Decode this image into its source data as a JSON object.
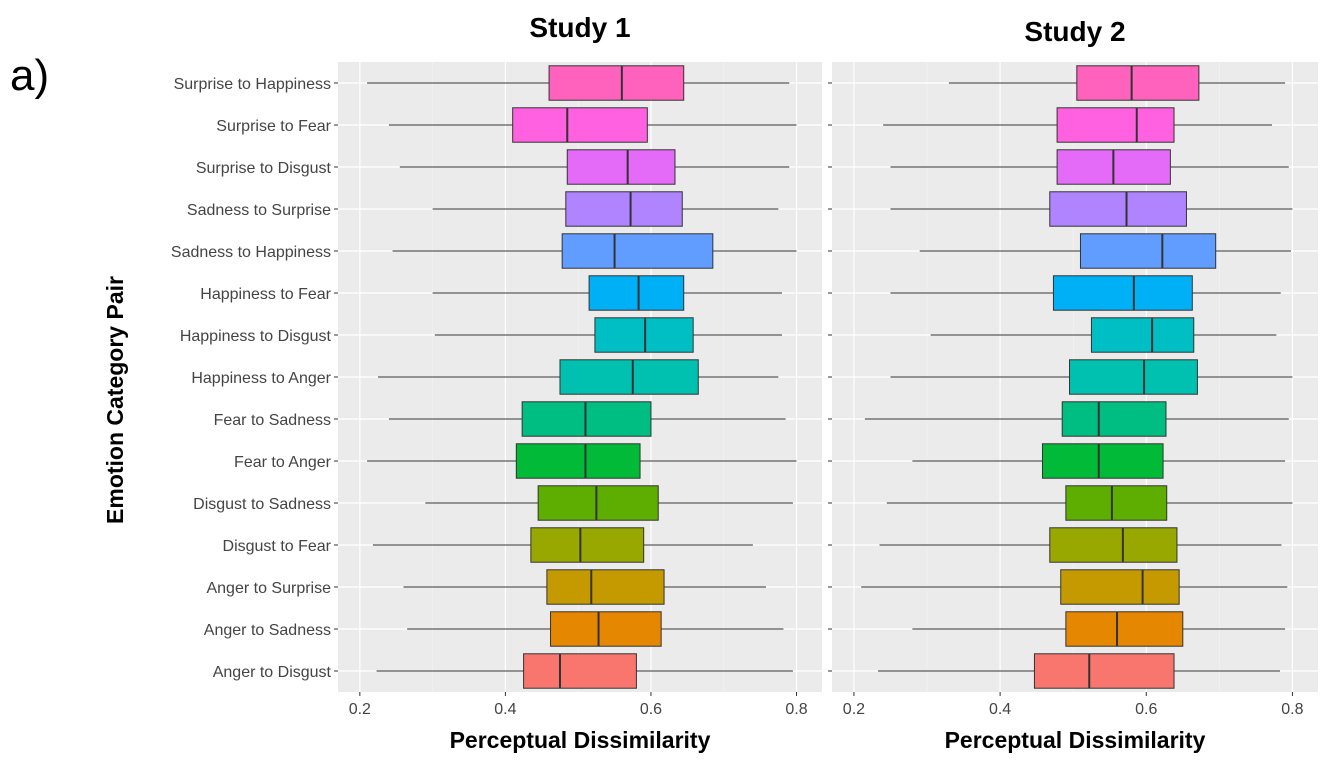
{
  "panel_label": "a)",
  "chart_data": {
    "type": "boxplot",
    "ylabel": "Emotion Category Pair",
    "categories": [
      "Surprise to Happiness",
      "Surprise to Fear",
      "Surprise to Disgust",
      "Sadness to Surprise",
      "Sadness to Happiness",
      "Happiness to Fear",
      "Happiness to Disgust",
      "Happiness to Anger",
      "Fear to Sadness",
      "Fear to Anger",
      "Disgust to Sadness",
      "Disgust to Fear",
      "Anger to Surprise",
      "Anger to Sadness",
      "Anger to Disgust"
    ],
    "colors": [
      "#FF62BC",
      "#FF61E0",
      "#E46BF8",
      "#B084FF",
      "#619CFF",
      "#00B0F6",
      "#00BFC4",
      "#00C0AF",
      "#00BE82",
      "#00BA38",
      "#5DAE00",
      "#99A800",
      "#C49A00",
      "#E58700",
      "#F8766D"
    ],
    "grid": true,
    "panels": [
      {
        "title": "Study 1",
        "xlabel": "Perceptual Dissimilarity",
        "xlim": [
          0.17,
          0.835
        ],
        "xticks": [
          "0.2",
          "0.4",
          "0.6",
          "0.8"
        ],
        "boxes": [
          {
            "min": 0.21,
            "q1": 0.46,
            "median": 0.56,
            "q3": 0.645,
            "max": 0.79
          },
          {
            "min": 0.24,
            "q1": 0.41,
            "median": 0.485,
            "q3": 0.595,
            "max": 0.8
          },
          {
            "min": 0.255,
            "q1": 0.485,
            "median": 0.568,
            "q3": 0.633,
            "max": 0.79
          },
          {
            "min": 0.3,
            "q1": 0.483,
            "median": 0.572,
            "q3": 0.643,
            "max": 0.775
          },
          {
            "min": 0.245,
            "q1": 0.478,
            "median": 0.55,
            "q3": 0.685,
            "max": 0.8
          },
          {
            "min": 0.3,
            "q1": 0.515,
            "median": 0.583,
            "q3": 0.645,
            "max": 0.78
          },
          {
            "min": 0.303,
            "q1": 0.523,
            "median": 0.592,
            "q3": 0.658,
            "max": 0.78
          },
          {
            "min": 0.225,
            "q1": 0.475,
            "median": 0.575,
            "q3": 0.665,
            "max": 0.775
          },
          {
            "min": 0.24,
            "q1": 0.423,
            "median": 0.51,
            "q3": 0.6,
            "max": 0.785
          },
          {
            "min": 0.21,
            "q1": 0.415,
            "median": 0.51,
            "q3": 0.585,
            "max": 0.8
          },
          {
            "min": 0.29,
            "q1": 0.445,
            "median": 0.525,
            "q3": 0.61,
            "max": 0.795
          },
          {
            "min": 0.218,
            "q1": 0.435,
            "median": 0.503,
            "q3": 0.59,
            "max": 0.74
          },
          {
            "min": 0.26,
            "q1": 0.457,
            "median": 0.518,
            "q3": 0.618,
            "max": 0.758
          },
          {
            "min": 0.265,
            "q1": 0.462,
            "median": 0.528,
            "q3": 0.614,
            "max": 0.782
          },
          {
            "min": 0.223,
            "q1": 0.425,
            "median": 0.475,
            "q3": 0.58,
            "max": 0.795
          }
        ]
      },
      {
        "title": "Study 2",
        "xlabel": "Perceptual Dissimilarity",
        "xlim": [
          0.17,
          0.835
        ],
        "xticks": [
          "0.2",
          "0.4",
          "0.6",
          "0.8"
        ],
        "boxes": [
          {
            "min": 0.33,
            "q1": 0.505,
            "median": 0.58,
            "q3": 0.672,
            "max": 0.79
          },
          {
            "min": 0.24,
            "q1": 0.478,
            "median": 0.587,
            "q3": 0.638,
            "max": 0.772
          },
          {
            "min": 0.25,
            "q1": 0.478,
            "median": 0.555,
            "q3": 0.633,
            "max": 0.795
          },
          {
            "min": 0.25,
            "q1": 0.468,
            "median": 0.573,
            "q3": 0.655,
            "max": 0.8
          },
          {
            "min": 0.29,
            "q1": 0.51,
            "median": 0.622,
            "q3": 0.695,
            "max": 0.798
          },
          {
            "min": 0.25,
            "q1": 0.473,
            "median": 0.583,
            "q3": 0.663,
            "max": 0.784
          },
          {
            "min": 0.305,
            "q1": 0.525,
            "median": 0.608,
            "q3": 0.665,
            "max": 0.778
          },
          {
            "min": 0.25,
            "q1": 0.495,
            "median": 0.597,
            "q3": 0.67,
            "max": 0.8
          },
          {
            "min": 0.215,
            "q1": 0.485,
            "median": 0.535,
            "q3": 0.627,
            "max": 0.795
          },
          {
            "min": 0.28,
            "q1": 0.458,
            "median": 0.535,
            "q3": 0.623,
            "max": 0.79
          },
          {
            "min": 0.245,
            "q1": 0.49,
            "median": 0.553,
            "q3": 0.628,
            "max": 0.8
          },
          {
            "min": 0.235,
            "q1": 0.468,
            "median": 0.568,
            "q3": 0.642,
            "max": 0.785
          },
          {
            "min": 0.21,
            "q1": 0.483,
            "median": 0.595,
            "q3": 0.645,
            "max": 0.793
          },
          {
            "min": 0.28,
            "q1": 0.49,
            "median": 0.56,
            "q3": 0.65,
            "max": 0.79
          },
          {
            "min": 0.233,
            "q1": 0.447,
            "median": 0.522,
            "q3": 0.638,
            "max": 0.783
          }
        ]
      }
    ]
  }
}
